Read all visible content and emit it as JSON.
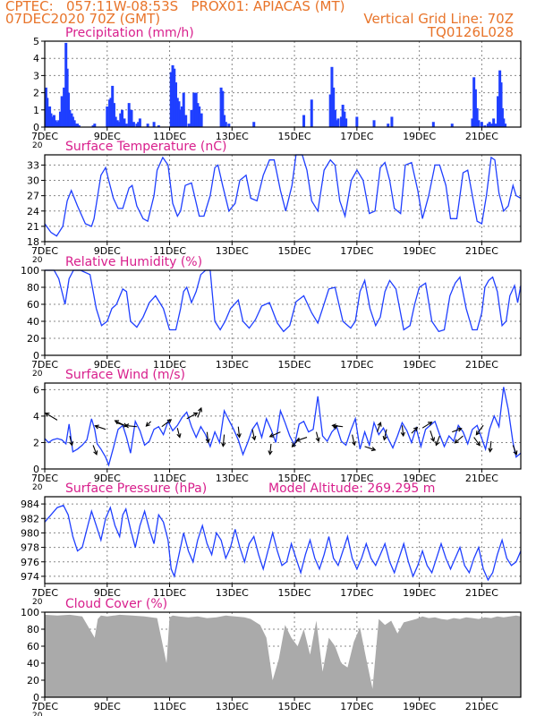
{
  "header": {
    "line1": "CPTEC:   057:11W-08:53S   PROX01: APIACAS (MT)",
    "line2_left": "07DEC2020 70Z (GMT)",
    "line2_right": "Vertical Grid Line: 70Z",
    "line3_right": "TQ0126L028"
  },
  "colors": {
    "header": "#e8742a",
    "title": "#d81e8c",
    "series": "#1f3fff",
    "cloud": "#aaaaaa",
    "arrow": "#000000",
    "grid": "#888888"
  },
  "x_axis": {
    "labels": [
      "7DEC",
      "9DEC",
      "11DEC",
      "13DEC",
      "15DEC",
      "17DEC",
      "19DEC",
      "21DEC"
    ],
    "label_days": [
      0,
      2,
      4,
      6,
      8,
      10,
      12,
      14
    ],
    "stub_label": "20"
  },
  "chart_data": [
    {
      "id": "precip",
      "type": "bar",
      "title": "Precipitation (mm/h)",
      "ylim": [
        0,
        5
      ],
      "yticks": [
        0,
        1,
        2,
        3,
        4,
        5
      ],
      "xlim": [
        0,
        15.25
      ],
      "grid": true,
      "x": [
        0.04,
        0.08,
        0.12,
        0.16,
        0.2,
        0.25,
        0.3,
        0.35,
        0.4,
        0.45,
        0.5,
        0.55,
        0.62,
        0.68,
        0.72,
        0.76,
        0.8,
        0.86,
        0.9,
        0.95,
        1.0,
        1.05,
        1.1,
        1.55,
        1.6,
        2.0,
        2.08,
        2.12,
        2.17,
        2.22,
        2.27,
        2.33,
        2.38,
        2.43,
        2.48,
        2.55,
        2.62,
        2.7,
        2.78,
        2.85,
        2.95,
        3.0,
        3.05,
        3.3,
        3.5,
        3.65,
        4.05,
        4.1,
        4.15,
        4.2,
        4.25,
        4.3,
        4.35,
        4.4,
        4.45,
        4.52,
        4.62,
        4.7,
        4.78,
        4.85,
        4.9,
        4.95,
        5.02,
        5.65,
        5.7,
        5.75,
        5.8,
        5.9,
        6.7,
        8.3,
        8.55,
        9.15,
        9.2,
        9.25,
        9.3,
        9.35,
        9.4,
        9.5,
        9.55,
        9.6,
        9.65,
        10.0,
        10.55,
        11.0,
        11.12,
        12.45,
        13.05,
        13.7,
        13.75,
        13.8,
        13.85,
        13.9,
        14.0,
        14.1,
        14.2,
        14.25,
        14.33,
        14.38,
        14.45,
        14.52,
        14.58,
        14.62,
        14.66,
        14.7,
        14.75
      ],
      "values": [
        2.3,
        1.7,
        1.0,
        1.2,
        0.8,
        0.6,
        0.7,
        0.4,
        0.3,
        0.4,
        0.9,
        1.8,
        2.3,
        4.9,
        3.4,
        2.0,
        1.0,
        0.8,
        0.6,
        0.4,
        0.2,
        0.2,
        0.1,
        0.1,
        0.2,
        1.2,
        1.6,
        1.7,
        2.4,
        1.4,
        0.6,
        0.4,
        0.3,
        0.8,
        1.0,
        0.5,
        0.2,
        1.4,
        1.0,
        0.3,
        0.2,
        0.3,
        0.5,
        0.2,
        0.3,
        0.1,
        3.2,
        3.6,
        3.4,
        2.6,
        1.7,
        1.5,
        1.0,
        1.2,
        2.0,
        0.7,
        0.2,
        1.0,
        2.0,
        2.0,
        1.4,
        1.2,
        0.8,
        2.3,
        2.1,
        0.7,
        0.3,
        0.2,
        0.3,
        0.7,
        1.6,
        1.9,
        3.5,
        2.3,
        1.0,
        0.4,
        0.5,
        0.6,
        1.3,
        0.9,
        0.5,
        0.6,
        0.4,
        0.2,
        0.6,
        0.3,
        0.2,
        0.5,
        2.9,
        2.2,
        1.1,
        0.4,
        0.3,
        0.1,
        0.2,
        0.3,
        0.2,
        0.5,
        0.2,
        1.8,
        3.3,
        2.6,
        1.1,
        0.5,
        0.2
      ]
    },
    {
      "id": "temp",
      "type": "line",
      "title": "Surface Temperature (nC)",
      "ylim": [
        18,
        35
      ],
      "yticks": [
        18,
        21,
        24,
        27,
        30,
        33
      ],
      "xlim": [
        0,
        15.25
      ],
      "grid": true,
      "x": [
        0,
        0.2,
        0.38,
        0.58,
        0.72,
        0.85,
        1.05,
        1.3,
        1.5,
        1.58,
        1.8,
        1.95,
        2.05,
        2.2,
        2.35,
        2.5,
        2.7,
        2.8,
        2.95,
        3.15,
        3.3,
        3.5,
        3.6,
        3.78,
        3.95,
        4.1,
        4.25,
        4.35,
        4.5,
        4.7,
        4.95,
        5.1,
        5.3,
        5.45,
        5.55,
        5.7,
        5.9,
        6.1,
        6.25,
        6.45,
        6.6,
        6.8,
        7.0,
        7.2,
        7.35,
        7.55,
        7.72,
        7.92,
        8.05,
        8.25,
        8.4,
        8.55,
        8.75,
        8.95,
        9.15,
        9.3,
        9.45,
        9.62,
        9.82,
        10.0,
        10.2,
        10.4,
        10.58,
        10.75,
        10.9,
        11.05,
        11.2,
        11.4,
        11.55,
        11.75,
        11.95,
        12.1,
        12.3,
        12.5,
        12.65,
        12.85,
        13.0,
        13.2,
        13.4,
        13.55,
        13.7,
        13.85,
        14.0,
        14.15,
        14.3,
        14.42,
        14.55,
        14.7,
        14.85,
        15.0,
        15.1,
        15.25
      ],
      "values": [
        21.5,
        19.8,
        19.1,
        21,
        26,
        28,
        25,
        21.5,
        21,
        22.5,
        31,
        32.5,
        30,
        26.5,
        24.5,
        24.5,
        28.5,
        29,
        25,
        22.5,
        22,
        27,
        32,
        34.5,
        33,
        25.5,
        23,
        24,
        29,
        29.5,
        23,
        23,
        27,
        32.5,
        33,
        29,
        24,
        25.5,
        30,
        31,
        26.5,
        26,
        31,
        34,
        34,
        28,
        24,
        29,
        35,
        35,
        32,
        26,
        24,
        32,
        34,
        33,
        26,
        23,
        30,
        32,
        30,
        23.5,
        24,
        32.5,
        33.5,
        30,
        24.5,
        23.5,
        33,
        33.5,
        28,
        22.5,
        27,
        33,
        33,
        29,
        22.5,
        22.5,
        31.5,
        32,
        27,
        22,
        21.5,
        27,
        34.5,
        34,
        27.5,
        24,
        25,
        29,
        27,
        26.5
      ]
    },
    {
      "id": "rh",
      "type": "line",
      "title": "Relative Humidity (%)",
      "ylim": [
        0,
        100
      ],
      "yticks": [
        0,
        20,
        40,
        60,
        80,
        100
      ],
      "xlim": [
        0,
        15.25
      ],
      "grid": true,
      "x": [
        0,
        0.3,
        0.45,
        0.65,
        0.78,
        0.92,
        1.15,
        1.45,
        1.65,
        1.82,
        2.0,
        2.15,
        2.3,
        2.5,
        2.62,
        2.75,
        2.95,
        3.15,
        3.35,
        3.55,
        3.8,
        4.0,
        4.2,
        4.35,
        4.45,
        4.55,
        4.7,
        4.85,
        5.0,
        5.15,
        5.3,
        5.45,
        5.62,
        5.78,
        5.95,
        6.2,
        6.35,
        6.55,
        6.75,
        6.95,
        7.2,
        7.45,
        7.65,
        7.85,
        8.05,
        8.3,
        8.55,
        8.75,
        8.9,
        9.1,
        9.3,
        9.55,
        9.8,
        9.95,
        10.1,
        10.25,
        10.42,
        10.6,
        10.75,
        10.9,
        11.05,
        11.25,
        11.5,
        11.7,
        11.85,
        12.0,
        12.2,
        12.4,
        12.62,
        12.8,
        12.98,
        13.15,
        13.3,
        13.5,
        13.7,
        13.85,
        14.0,
        14.1,
        14.22,
        14.35,
        14.5,
        14.65,
        14.78,
        14.9,
        15.05,
        15.15,
        15.25
      ],
      "values": [
        100,
        100,
        90,
        60,
        90,
        100,
        100,
        95,
        55,
        35,
        40,
        55,
        60,
        78,
        75,
        40,
        33,
        45,
        62,
        70,
        55,
        30,
        30,
        55,
        75,
        80,
        62,
        75,
        95,
        100,
        100,
        40,
        30,
        40,
        55,
        65,
        40,
        32,
        42,
        58,
        62,
        38,
        28,
        35,
        63,
        70,
        50,
        38,
        55,
        78,
        80,
        40,
        32,
        40,
        75,
        88,
        55,
        35,
        45,
        75,
        88,
        78,
        30,
        35,
        60,
        80,
        85,
        40,
        28,
        30,
        70,
        85,
        92,
        55,
        30,
        30,
        50,
        80,
        88,
        92,
        75,
        35,
        40,
        70,
        82,
        62,
        82
      ]
    },
    {
      "id": "wind",
      "type": "line",
      "title": "Surface Wind (m/s)",
      "ylim": [
        0,
        6.5
      ],
      "yticks": [
        0,
        2,
        4,
        6
      ],
      "xlim": [
        0,
        15.25
      ],
      "grid": true,
      "x": [
        0,
        0.12,
        0.25,
        0.4,
        0.55,
        0.68,
        0.78,
        0.9,
        1.05,
        1.2,
        1.35,
        1.5,
        1.6,
        1.68,
        1.8,
        1.95,
        2.05,
        2.2,
        2.35,
        2.5,
        2.62,
        2.75,
        2.9,
        3.05,
        3.2,
        3.35,
        3.5,
        3.65,
        3.8,
        3.95,
        4.1,
        4.25,
        4.4,
        4.55,
        4.7,
        4.85,
        5.0,
        5.15,
        5.3,
        5.45,
        5.6,
        5.75,
        5.9,
        6.05,
        6.2,
        6.35,
        6.5,
        6.65,
        6.8,
        6.95,
        7.1,
        7.25,
        7.4,
        7.55,
        7.7,
        7.85,
        8.0,
        8.15,
        8.3,
        8.45,
        8.6,
        8.75,
        8.9,
        9.05,
        9.2,
        9.35,
        9.5,
        9.65,
        9.8,
        9.95,
        10.1,
        10.25,
        10.4,
        10.55,
        10.7,
        10.85,
        11.0,
        11.15,
        11.3,
        11.45,
        11.6,
        11.75,
        11.9,
        12.05,
        12.2,
        12.35,
        12.5,
        12.65,
        12.8,
        12.95,
        13.1,
        13.25,
        13.4,
        13.55,
        13.7,
        13.85,
        14.0,
        14.12,
        14.25,
        14.4,
        14.55,
        14.7,
        14.85,
        15.0,
        15.1,
        15.25
      ],
      "values": [
        2.3,
        2.0,
        2.2,
        2.3,
        2.2,
        1.9,
        3.4,
        1.3,
        1.5,
        1.8,
        2.2,
        3.8,
        3.0,
        1.9,
        1.5,
        0.9,
        0.3,
        1.6,
        3.0,
        3.3,
        2.4,
        1.2,
        3.6,
        2.9,
        1.8,
        2.1,
        3.0,
        3.2,
        2.6,
        3.6,
        2.9,
        3.3,
        3.9,
        4.3,
        3.2,
        2.4,
        3.2,
        2.6,
        1.7,
        2.8,
        2.0,
        4.4,
        3.7,
        3.0,
        2.2,
        1.1,
        2.0,
        3.0,
        3.5,
        2.4,
        3.8,
        3.0,
        2.0,
        4.4,
        3.5,
        2.5,
        1.8,
        3.4,
        3.6,
        2.8,
        3.0,
        5.5,
        2.5,
        2.1,
        2.8,
        3.2,
        2.1,
        1.8,
        2.9,
        3.8,
        1.5,
        2.8,
        1.8,
        3.5,
        2.6,
        3.1,
        2.3,
        1.6,
        2.5,
        3.5,
        2.9,
        2.0,
        3.1,
        1.7,
        3.0,
        3.3,
        3.6,
        2.6,
        1.7,
        2.5,
        2.1,
        3.3,
        2.8,
        1.9,
        3.0,
        3.3,
        2.3,
        1.5,
        3.0,
        4.0,
        3.2,
        6.2,
        4.5,
        2.0,
        0.9,
        1.2
      ]
    },
    {
      "id": "wind_arrows",
      "type": "vector",
      "x": [
        0.4,
        0.8,
        1.55,
        1.95,
        2.3,
        2.55,
        2.95,
        3.4,
        3.75,
        4.25,
        4.55,
        4.9,
        5.2,
        5.75,
        6.2,
        6.65,
        7.25,
        7.55,
        8.15,
        8.4,
        8.7,
        9.25,
        9.55,
        9.85,
        10.25,
        10.65,
        10.95,
        11.45,
        11.75,
        12.1,
        12.35,
        12.65,
        13.05,
        13.4,
        13.75,
        14.05,
        14.3,
        15.0
      ],
      "y": [
        3.7,
        2.5,
        1.8,
        3.0,
        3.5,
        3.3,
        3.2,
        3.6,
        3.2,
        3.1,
        3.8,
        3.9,
        2.8,
        2.6,
        3.2,
        3.0,
        1.9,
        2.8,
        2.3,
        2.4,
        2.8,
        3.1,
        3.2,
        2.6,
        1.7,
        2.8,
        3.0,
        3.3,
        2.7,
        3.1,
        2.9,
        2.5,
        2.8,
        2.5,
        2.4,
        3.3,
        2.1,
        1.8
      ],
      "dx": [
        -1,
        0.2,
        0.3,
        -0.9,
        0.9,
        -0.8,
        -1,
        -0.4,
        0.8,
        0.2,
        0.9,
        0.3,
        0.1,
        -0.1,
        0.1,
        0.2,
        -0.1,
        -0.9,
        -0.6,
        -0.9,
        0.2,
        0.3,
        -0.9,
        0.2,
        0.9,
        0.3,
        -0.2,
        0.1,
        0.5,
        0.8,
        0.3,
        -0.3,
        0.8,
        -0.7,
        0.5,
        -0.6,
        -0.1,
        0.3
      ],
      "dy": [
        0.6,
        -0.8,
        -0.8,
        0.3,
        -0.3,
        0.4,
        0.1,
        -0.4,
        0.6,
        -0.8,
        0.5,
        0.8,
        -0.9,
        -1,
        -0.9,
        -0.9,
        -0.9,
        -0.4,
        -0.7,
        -0.3,
        -0.8,
        0.2,
        0.1,
        -0.9,
        -0.3,
        0.8,
        -0.9,
        -0.9,
        0.5,
        0.5,
        -0.9,
        -0.8,
        0.3,
        -0.6,
        -0.7,
        -0.8,
        -0.9,
        -0.8
      ]
    },
    {
      "id": "pressure",
      "type": "line",
      "title": "Surface Pressure (hPa)",
      "annotation": "Model Altitude: 269.295 m",
      "ylim": [
        973,
        985
      ],
      "yticks": [
        974,
        976,
        978,
        980,
        982,
        984
      ],
      "xlim": [
        0,
        15.25
      ],
      "grid": true,
      "x": [
        0,
        0.2,
        0.4,
        0.6,
        0.75,
        0.9,
        1.05,
        1.2,
        1.35,
        1.5,
        1.65,
        1.8,
        1.95,
        2.1,
        2.25,
        2.4,
        2.5,
        2.6,
        2.75,
        2.9,
        3.05,
        3.2,
        3.35,
        3.5,
        3.65,
        3.8,
        3.95,
        4.05,
        4.15,
        4.3,
        4.45,
        4.6,
        4.75,
        4.9,
        5.05,
        5.2,
        5.35,
        5.5,
        5.65,
        5.8,
        5.95,
        6.1,
        6.25,
        6.4,
        6.55,
        6.7,
        6.85,
        7.0,
        7.15,
        7.3,
        7.45,
        7.6,
        7.75,
        7.9,
        8.05,
        8.2,
        8.35,
        8.5,
        8.65,
        8.8,
        8.95,
        9.1,
        9.25,
        9.4,
        9.55,
        9.7,
        9.85,
        10.0,
        10.15,
        10.3,
        10.45,
        10.6,
        10.75,
        10.9,
        11.05,
        11.2,
        11.35,
        11.5,
        11.65,
        11.8,
        11.95,
        12.1,
        12.25,
        12.4,
        12.55,
        12.7,
        12.85,
        13.0,
        13.15,
        13.3,
        13.45,
        13.6,
        13.75,
        13.9,
        14.05,
        14.2,
        14.35,
        14.5,
        14.65,
        14.8,
        14.95,
        15.1,
        15.25
      ],
      "values": [
        981.5,
        982.5,
        983.5,
        983.8,
        982.5,
        979.5,
        977.5,
        978,
        980.5,
        983,
        981,
        979,
        982,
        983.5,
        981,
        979.5,
        982.5,
        983.3,
        980.5,
        978,
        981,
        983,
        980.5,
        978.5,
        982.5,
        981.5,
        979,
        975,
        974,
        977,
        980,
        977.5,
        976,
        979,
        981,
        978.5,
        977,
        980,
        979,
        976.5,
        978,
        980.5,
        978,
        976,
        978.5,
        979.5,
        977,
        975,
        977.5,
        980,
        977.5,
        975.5,
        976,
        978.5,
        976.5,
        974.5,
        977,
        979,
        976.5,
        975,
        977,
        979.5,
        976.5,
        975.5,
        977.5,
        979.5,
        976.5,
        975,
        976.5,
        978.5,
        976.5,
        975.5,
        977,
        978.5,
        976,
        974.5,
        976.5,
        978.5,
        976,
        974,
        975.5,
        977.5,
        975.5,
        974.5,
        976.5,
        978.5,
        976.5,
        975,
        976.5,
        978,
        975.5,
        974.5,
        976.5,
        978,
        975,
        973.5,
        974.5,
        977,
        979,
        976.5,
        975.5,
        976,
        977.5
      ]
    },
    {
      "id": "cloud",
      "type": "area",
      "title": "Cloud Cover (%)",
      "ylim": [
        0,
        100
      ],
      "yticks": [
        0,
        20,
        40,
        60,
        80,
        100
      ],
      "xlim": [
        0,
        15.25
      ],
      "grid": true,
      "x": [
        0,
        0.4,
        0.8,
        1.2,
        1.6,
        1.7,
        1.8,
        2.0,
        2.4,
        2.8,
        3.2,
        3.6,
        3.9,
        4.0,
        4.1,
        4.3,
        4.6,
        4.9,
        5.2,
        5.5,
        5.8,
        6.1,
        6.4,
        6.6,
        6.9,
        7.1,
        7.3,
        7.5,
        7.7,
        7.9,
        8.1,
        8.3,
        8.5,
        8.7,
        8.9,
        9.1,
        9.3,
        9.5,
        9.7,
        9.9,
        10.1,
        10.3,
        10.5,
        10.7,
        10.9,
        11.1,
        11.3,
        11.5,
        11.7,
        11.9,
        12.1,
        12.3,
        12.5,
        12.7,
        12.9,
        13.1,
        13.3,
        13.5,
        13.7,
        13.9,
        14.1,
        14.3,
        14.5,
        14.7,
        14.9,
        15.1,
        15.25
      ],
      "values": [
        97,
        96,
        97,
        95,
        70,
        92,
        96,
        95,
        97,
        96,
        95,
        93,
        40,
        94,
        96,
        95,
        94,
        95,
        93,
        94,
        96,
        95,
        94,
        92,
        85,
        70,
        20,
        45,
        85,
        70,
        60,
        80,
        50,
        90,
        30,
        70,
        60,
        40,
        35,
        65,
        82,
        45,
        10,
        92,
        85,
        90,
        75,
        88,
        90,
        92,
        95,
        93,
        94,
        92,
        91,
        93,
        92,
        94,
        93,
        92,
        94,
        93,
        95,
        94,
        95,
        96,
        95
      ]
    }
  ]
}
